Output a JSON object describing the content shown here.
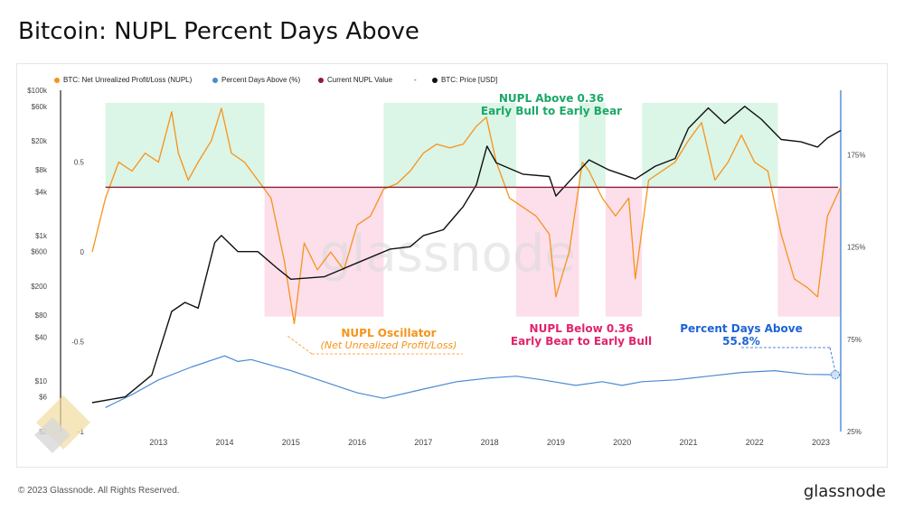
{
  "page": {
    "title": "Bitcoin: NUPL Percent Days Above",
    "copyright": "© 2023 Glassnode. All Rights Reserved.",
    "brand": "glassnode",
    "watermark": "glassnode"
  },
  "legend": [
    {
      "label": "BTC: Net Unrealized Profit/Loss (NUPL)",
      "color": "#f7931a"
    },
    {
      "label": "Percent Days Above (%)",
      "color": "#4a8ad4"
    },
    {
      "label": "Current NUPL Value",
      "color": "#8b1c35"
    },
    {
      "label": "-",
      "color": ""
    },
    {
      "label": "BTC: Price [USD]",
      "color": "#111111"
    }
  ],
  "annotations": {
    "above_title": "NUPL Above 0.36",
    "above_sub": "Early Bull to Early Bear",
    "below_title": "NUPL Below 0.36",
    "below_sub": "Early Bear to Early Bull",
    "osc_title": "NUPL Oscillator",
    "osc_sub": "(Net Unrealized Profit/Loss)",
    "pda_title": "Percent Days Above",
    "pda_value": "55.8%"
  },
  "colors": {
    "nupl": "#f7931a",
    "pda": "#4a8ad4",
    "threshold": "#8b1c35",
    "price": "#111111",
    "bull_zone": "#d5f3e3",
    "bear_zone": "#fbd9e8",
    "above_text": "#1aa866",
    "below_text": "#e0246b",
    "osc_text": "#f7931a",
    "pda_text": "#1d63d6"
  },
  "chart_data": {
    "type": "line",
    "x_ticks": [
      "2013",
      "2014",
      "2015",
      "2016",
      "2017",
      "2018",
      "2019",
      "2020",
      "2021",
      "2022",
      "2023"
    ],
    "x_range": [
      2012.0,
      2023.3
    ],
    "y_left_price_ticks": [
      "$100k",
      "$60k",
      "$20k",
      "$8k",
      "$4k",
      "$1k",
      "$600",
      "$200",
      "$80",
      "$40",
      "$10",
      "$6",
      "$2"
    ],
    "y_left_price_scale": "log",
    "y_nupl_ticks": [
      "0.5",
      "0",
      "-0.5",
      "-1"
    ],
    "y_nupl_range": [
      -1,
      0.9
    ],
    "y_right_ticks": [
      "175%",
      "125%",
      "75%",
      "25%"
    ],
    "y_right_range": [
      25,
      210
    ],
    "threshold": 0.36,
    "zones_above": [
      [
        2012.2,
        2014.6
      ],
      [
        2016.4,
        2018.4
      ],
      [
        2019.35,
        2019.75
      ],
      [
        2020.3,
        2022.35
      ]
    ],
    "zones_below": [
      [
        2014.6,
        2016.4
      ],
      [
        2018.4,
        2019.35
      ],
      [
        2019.75,
        2020.3
      ],
      [
        2022.35,
        2023.3
      ]
    ],
    "series": [
      {
        "name": "BTC: Net Unrealized Profit/Loss (NUPL)",
        "axis": "nupl",
        "x": [
          2012.0,
          2012.2,
          2012.4,
          2012.6,
          2012.8,
          2013.0,
          2013.2,
          2013.3,
          2013.45,
          2013.6,
          2013.8,
          2013.95,
          2014.1,
          2014.3,
          2014.5,
          2014.7,
          2014.9,
          2015.05,
          2015.2,
          2015.4,
          2015.6,
          2015.8,
          2016.0,
          2016.2,
          2016.4,
          2016.6,
          2016.8,
          2017.0,
          2017.2,
          2017.4,
          2017.6,
          2017.8,
          2017.95,
          2018.1,
          2018.3,
          2018.5,
          2018.7,
          2018.9,
          2019.0,
          2019.2,
          2019.4,
          2019.5,
          2019.7,
          2019.9,
          2020.1,
          2020.2,
          2020.4,
          2020.6,
          2020.8,
          2021.0,
          2021.2,
          2021.4,
          2021.6,
          2021.8,
          2022.0,
          2022.2,
          2022.4,
          2022.6,
          2022.8,
          2022.95,
          2023.1,
          2023.3
        ],
        "values": [
          0.0,
          0.3,
          0.5,
          0.45,
          0.55,
          0.5,
          0.78,
          0.55,
          0.4,
          0.5,
          0.62,
          0.8,
          0.55,
          0.5,
          0.4,
          0.3,
          -0.05,
          -0.4,
          0.05,
          -0.1,
          0.0,
          -0.1,
          0.15,
          0.2,
          0.35,
          0.38,
          0.45,
          0.55,
          0.6,
          0.58,
          0.6,
          0.7,
          0.75,
          0.5,
          0.3,
          0.25,
          0.2,
          0.1,
          -0.25,
          0.0,
          0.5,
          0.45,
          0.3,
          0.2,
          0.3,
          -0.15,
          0.4,
          0.45,
          0.5,
          0.62,
          0.72,
          0.4,
          0.5,
          0.65,
          0.5,
          0.45,
          0.1,
          -0.15,
          -0.2,
          -0.25,
          0.2,
          0.36
        ]
      },
      {
        "name": "Percent Days Above (%)",
        "axis": "right",
        "x": [
          2012.2,
          2012.6,
          2013.0,
          2013.5,
          2014.0,
          2014.2,
          2014.4,
          2014.6,
          2015.0,
          2015.5,
          2016.0,
          2016.4,
          2017.0,
          2017.5,
          2018.0,
          2018.4,
          2018.8,
          2019.3,
          2019.7,
          2020.0,
          2020.3,
          2020.8,
          2021.3,
          2021.8,
          2022.3,
          2022.8,
          2023.3
        ],
        "values": [
          38,
          45,
          53,
          60,
          66,
          63,
          64,
          62,
          58,
          52,
          46,
          43,
          48,
          52,
          54,
          55,
          53,
          50,
          52,
          50,
          52,
          53,
          55,
          57,
          58,
          56,
          55.8
        ]
      },
      {
        "name": "BTC: Price [USD]",
        "axis": "price",
        "x": [
          2012.0,
          2012.5,
          2012.9,
          2013.2,
          2013.4,
          2013.6,
          2013.85,
          2013.95,
          2014.2,
          2014.5,
          2014.8,
          2015.0,
          2015.5,
          2016.0,
          2016.5,
          2016.8,
          2017.0,
          2017.3,
          2017.6,
          2017.8,
          2017.96,
          2018.1,
          2018.5,
          2018.9,
          2019.0,
          2019.5,
          2019.8,
          2020.2,
          2020.5,
          2020.8,
          2021.0,
          2021.3,
          2021.55,
          2021.85,
          2022.1,
          2022.4,
          2022.7,
          2022.95,
          2023.1,
          2023.3
        ],
        "values": [
          5,
          6,
          12,
          90,
          120,
          100,
          800,
          1000,
          600,
          600,
          350,
          250,
          270,
          420,
          650,
          700,
          1000,
          1200,
          2500,
          5000,
          17000,
          10000,
          7000,
          6500,
          3500,
          11000,
          8000,
          6000,
          9000,
          11500,
          30000,
          57000,
          35000,
          60000,
          40000,
          21000,
          19500,
          16500,
          22000,
          28000
        ]
      }
    ]
  }
}
